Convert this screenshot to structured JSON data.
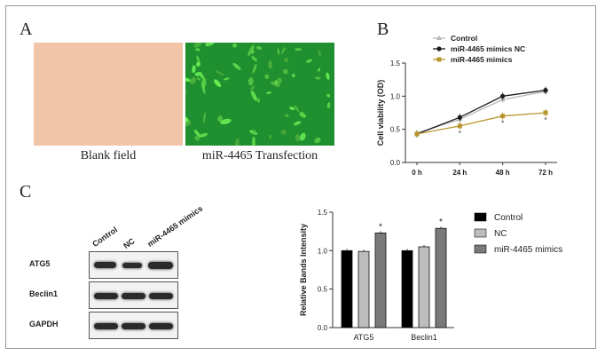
{
  "panels": {
    "a": "A",
    "b": "B",
    "c": "C"
  },
  "panel_a": {
    "left_caption": "Blank field",
    "right_caption": "miR-4465 Transfection",
    "left_color": "#f2c4a8",
    "right_color": "#1f8f2f"
  },
  "panel_c_blot": {
    "lanes": [
      "Control",
      "NC",
      "miR-4465 mimics"
    ],
    "rows": [
      "ATG5",
      "Beclin1",
      "GAPDH"
    ]
  },
  "chart_data": [
    {
      "type": "line",
      "x": [
        "0 h",
        "24 h",
        "48 h",
        "72 h"
      ],
      "ylabel": "Cell viability (OD)",
      "ylim": [
        0.0,
        1.5
      ],
      "yticks": [
        "0.0",
        "0.5",
        "1.0",
        "1.5"
      ],
      "legend": "top-left",
      "series": [
        {
          "name": "Control",
          "values": [
            0.44,
            0.65,
            0.95,
            1.07
          ],
          "color": "#b8b8b8",
          "marker": "triangle"
        },
        {
          "name": "miR-4465 mimics NC",
          "values": [
            0.43,
            0.68,
            1.0,
            1.09
          ],
          "color": "#1a1a1a",
          "marker": "circle"
        },
        {
          "name": "miR-4465 mimics",
          "values": [
            0.43,
            0.55,
            0.7,
            0.75
          ],
          "color": "#b8962e",
          "marker": "square"
        }
      ],
      "annotations": [
        "*",
        "*",
        "*"
      ]
    },
    {
      "type": "bar",
      "categories": [
        "ATG5",
        "Beclin1"
      ],
      "ylabel": "Relative Bands Intensity",
      "ylim": [
        0.0,
        1.5
      ],
      "yticks": [
        "0.0",
        "0.5",
        "1.0",
        "1.5"
      ],
      "legend": "right",
      "series": [
        {
          "name": "Control",
          "values": [
            1.0,
            1.0
          ],
          "color": "#000000"
        },
        {
          "name": "NC",
          "values": [
            0.99,
            1.05
          ],
          "color": "#bdbdbd"
        },
        {
          "name": "miR-4465 mimics",
          "values": [
            1.23,
            1.29
          ],
          "color": "#7a7a7a"
        }
      ],
      "annotations": [
        "*",
        "*"
      ]
    }
  ]
}
